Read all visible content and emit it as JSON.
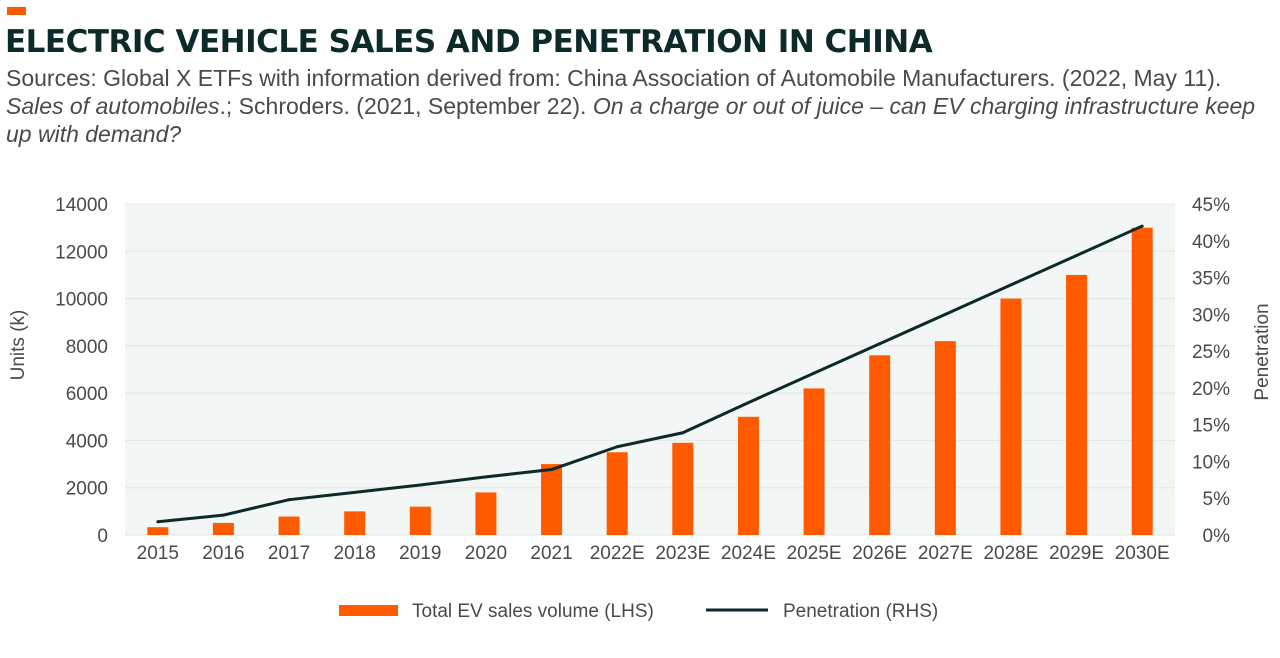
{
  "title": "ELECTRIC VEHICLE SALES AND PENETRATION IN CHINA",
  "sources": {
    "p1": "Sources: Global X ETFs with information derived from: China Association of Automobile Manufacturers. (2022, May 11). ",
    "p2": "Sales of automobiles",
    "p3": ".; Schroders. (2021, September 22). ",
    "p4": "On a charge or out of juice – can EV charging infrastructure keep up with demand?"
  },
  "colors": {
    "accent": "#ff5a00",
    "bar": "#ff5a00",
    "line": "#0d2a2b",
    "plot_bg": "#f2f6f5",
    "grid": "#dfe7e5"
  },
  "chart_data": {
    "type": "bar+line",
    "categories": [
      "2015",
      "2016",
      "2017",
      "2018",
      "2019",
      "2020",
      "2021",
      "2022E",
      "2023E",
      "2024E",
      "2025E",
      "2026E",
      "2027E",
      "2028E",
      "2029E",
      "2030E"
    ],
    "series": [
      {
        "name": "Total EV sales volume (LHS)",
        "type": "bar",
        "axis": "left",
        "values": [
          330,
          510,
          780,
          1000,
          1200,
          1800,
          3000,
          3500,
          3900,
          5000,
          6200,
          7600,
          8200,
          10000,
          11000,
          13000
        ]
      },
      {
        "name": "Penetration (RHS)",
        "type": "line",
        "axis": "right",
        "values": [
          1.8,
          2.7,
          4.8,
          5.8,
          6.8,
          7.9,
          8.9,
          12.0,
          13.9,
          18.0,
          22.0,
          26.0,
          30.0,
          34.0,
          38.0,
          42.0
        ]
      }
    ],
    "ylabel": "Units (k)",
    "ylim": [
      0,
      14000
    ],
    "yticks": [
      "0",
      "2000",
      "4000",
      "6000",
      "8000",
      "10000",
      "12000",
      "14000"
    ],
    "y2label": "Penetration",
    "y2lim": [
      0,
      45
    ],
    "y2ticks": [
      "0%",
      "5%",
      "10%",
      "15%",
      "20%",
      "25%",
      "30%",
      "35%",
      "40%",
      "45%"
    ],
    "grid": true,
    "legend_position": "bottom"
  }
}
